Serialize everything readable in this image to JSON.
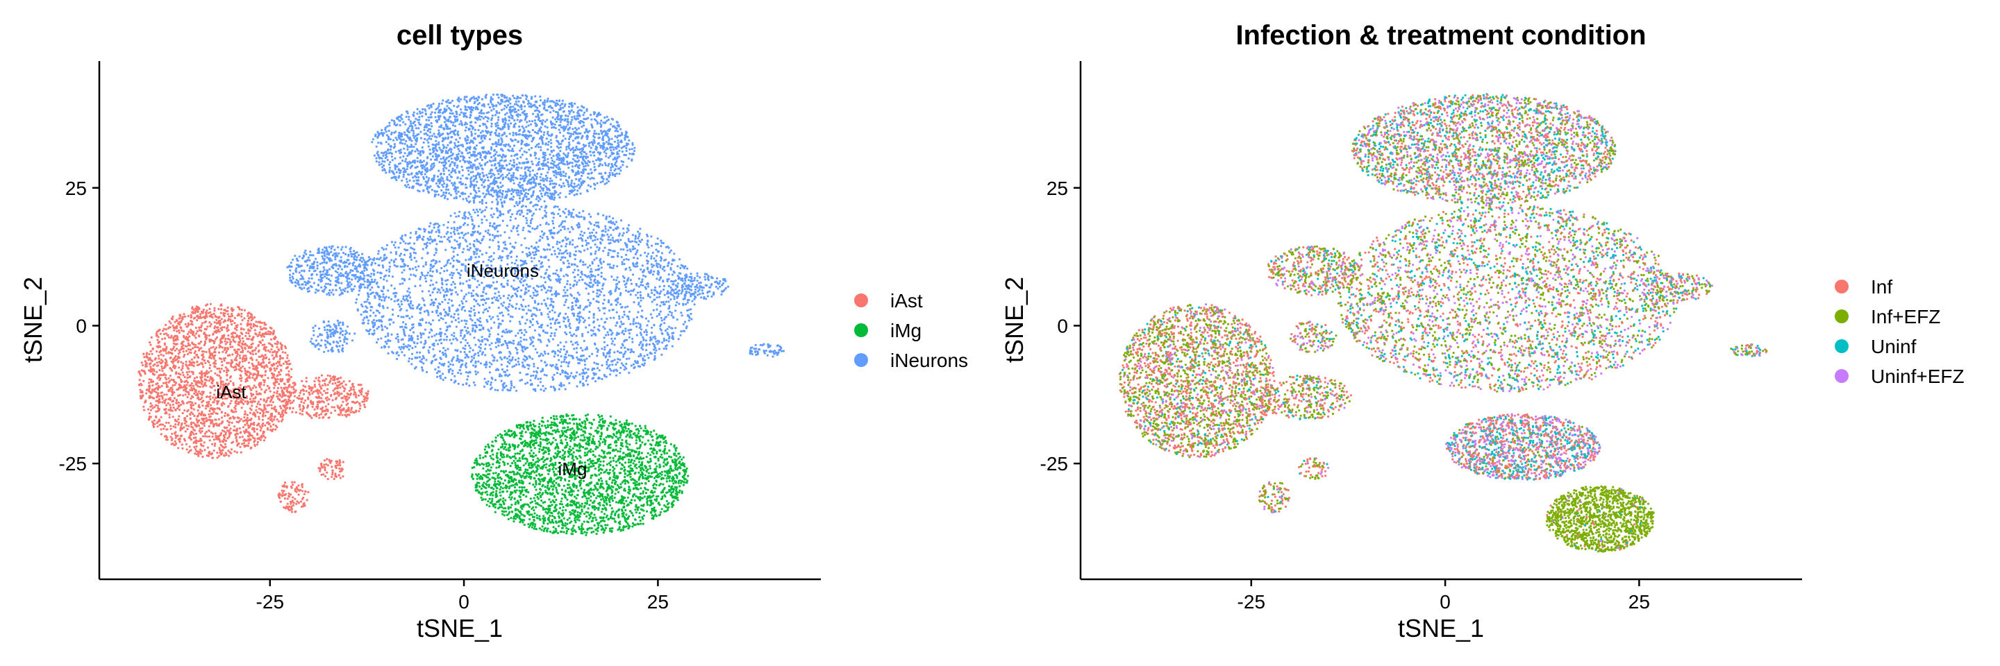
{
  "chart_data": [
    {
      "type": "scatter",
      "title": "cell types",
      "xlabel": "tSNE_1",
      "ylabel": "tSNE_2",
      "xlim": [
        -47,
        46
      ],
      "ylim": [
        -46,
        48
      ],
      "xticks": [
        "-25",
        "0",
        "25"
      ],
      "yticks": [
        "-25",
        "0",
        "25"
      ],
      "xtick_values": [
        -25,
        0,
        25
      ],
      "ytick_values": [
        -25,
        0,
        25
      ],
      "grid": false,
      "legend_position": "right",
      "legend": [
        {
          "label": "iAst",
          "color": "#F8766D"
        },
        {
          "label": "iMg",
          "color": "#00BA38"
        },
        {
          "label": "iNeurons",
          "color": "#619CFF"
        }
      ],
      "annotations": [
        {
          "text": "iNeurons",
          "x": 5,
          "y": 10
        },
        {
          "text": "iAst",
          "x": -30,
          "y": -12
        },
        {
          "text": "iMg",
          "x": 14,
          "y": -26
        }
      ],
      "clusters": [
        {
          "series": "iNeurons",
          "cx": 5,
          "cy": 32,
          "rx": 17,
          "ry": 10,
          "n": 2600
        },
        {
          "series": "iNeurons",
          "cx": 8,
          "cy": 5,
          "rx": 22,
          "ry": 17,
          "n": 3200
        },
        {
          "series": "iNeurons",
          "cx": -17,
          "cy": 10,
          "rx": 6,
          "ry": 4.5,
          "n": 420
        },
        {
          "series": "iNeurons",
          "cx": -17,
          "cy": -2,
          "rx": 3,
          "ry": 3,
          "n": 120
        },
        {
          "series": "iNeurons",
          "cx": 30,
          "cy": 7,
          "rx": 4.5,
          "ry": 2.5,
          "n": 160
        },
        {
          "series": "iNeurons",
          "cx": 39,
          "cy": -4.5,
          "rx": 2.5,
          "ry": 1.2,
          "n": 60
        },
        {
          "series": "iAst",
          "cx": -32,
          "cy": -10,
          "rx": 10,
          "ry": 14,
          "n": 2300
        },
        {
          "series": "iAst",
          "cx": -18,
          "cy": -13,
          "rx": 6,
          "ry": 4,
          "n": 350
        },
        {
          "series": "iAst",
          "cx": -22,
          "cy": -31,
          "rx": 2,
          "ry": 3,
          "n": 90
        },
        {
          "series": "iAst",
          "cx": -17,
          "cy": -26,
          "rx": 2,
          "ry": 2,
          "n": 60
        },
        {
          "series": "iMg",
          "cx": 15,
          "cy": -27,
          "rx": 14,
          "ry": 11,
          "n": 2600
        }
      ]
    },
    {
      "type": "scatter",
      "title": "Infection & treatment condition",
      "xlabel": "tSNE_1",
      "ylabel": "tSNE_2",
      "xlim": [
        -47,
        46
      ],
      "ylim": [
        -46,
        48
      ],
      "xticks": [
        "-25",
        "0",
        "25"
      ],
      "yticks": [
        "-25",
        "0",
        "25"
      ],
      "xtick_values": [
        -25,
        0,
        25
      ],
      "ytick_values": [
        -25,
        0,
        25
      ],
      "grid": false,
      "legend_position": "right",
      "legend": [
        {
          "label": "Inf",
          "color": "#F8766D"
        },
        {
          "label": "Inf+EFZ",
          "color": "#7CAE00"
        },
        {
          "label": "Uninf",
          "color": "#00BFC4"
        },
        {
          "label": "Uninf+EFZ",
          "color": "#C77CFF"
        }
      ],
      "clusters": [
        {
          "cx": 5,
          "cy": 32,
          "rx": 17,
          "ry": 10,
          "n": 2600,
          "mix": [
            0.3,
            0.25,
            0.25,
            0.2
          ]
        },
        {
          "cx": 8,
          "cy": 5,
          "rx": 22,
          "ry": 17,
          "n": 3200,
          "mix": [
            0.3,
            0.3,
            0.2,
            0.2
          ]
        },
        {
          "cx": -17,
          "cy": 10,
          "rx": 6,
          "ry": 4.5,
          "n": 420,
          "mix": [
            0.35,
            0.35,
            0.15,
            0.15
          ]
        },
        {
          "cx": -17,
          "cy": -2,
          "rx": 3,
          "ry": 3,
          "n": 120,
          "mix": [
            0.3,
            0.3,
            0.2,
            0.2
          ]
        },
        {
          "cx": 30,
          "cy": 7,
          "rx": 4.5,
          "ry": 2.5,
          "n": 160,
          "mix": [
            0.3,
            0.3,
            0.2,
            0.2
          ]
        },
        {
          "cx": 39,
          "cy": -4.5,
          "rx": 2.5,
          "ry": 1.2,
          "n": 60,
          "mix": [
            0.4,
            0.3,
            0.15,
            0.15
          ]
        },
        {
          "cx": -32,
          "cy": -10,
          "rx": 10,
          "ry": 14,
          "n": 2300,
          "mix": [
            0.4,
            0.4,
            0.1,
            0.1
          ]
        },
        {
          "cx": -18,
          "cy": -13,
          "rx": 6,
          "ry": 4,
          "n": 350,
          "mix": [
            0.4,
            0.4,
            0.1,
            0.1
          ]
        },
        {
          "cx": -22,
          "cy": -31,
          "rx": 2,
          "ry": 3,
          "n": 90,
          "mix": [
            0.4,
            0.4,
            0.1,
            0.1
          ]
        },
        {
          "cx": -17,
          "cy": -26,
          "rx": 2,
          "ry": 2,
          "n": 60,
          "mix": [
            0.4,
            0.4,
            0.1,
            0.1
          ]
        },
        {
          "cx": 10,
          "cy": -22,
          "rx": 10,
          "ry": 6,
          "n": 1400,
          "mix": [
            0.4,
            0.05,
            0.3,
            0.25
          ]
        },
        {
          "cx": 20,
          "cy": -35,
          "rx": 7,
          "ry": 6,
          "n": 1200,
          "mix": [
            0.02,
            0.96,
            0.01,
            0.01
          ]
        }
      ]
    }
  ]
}
